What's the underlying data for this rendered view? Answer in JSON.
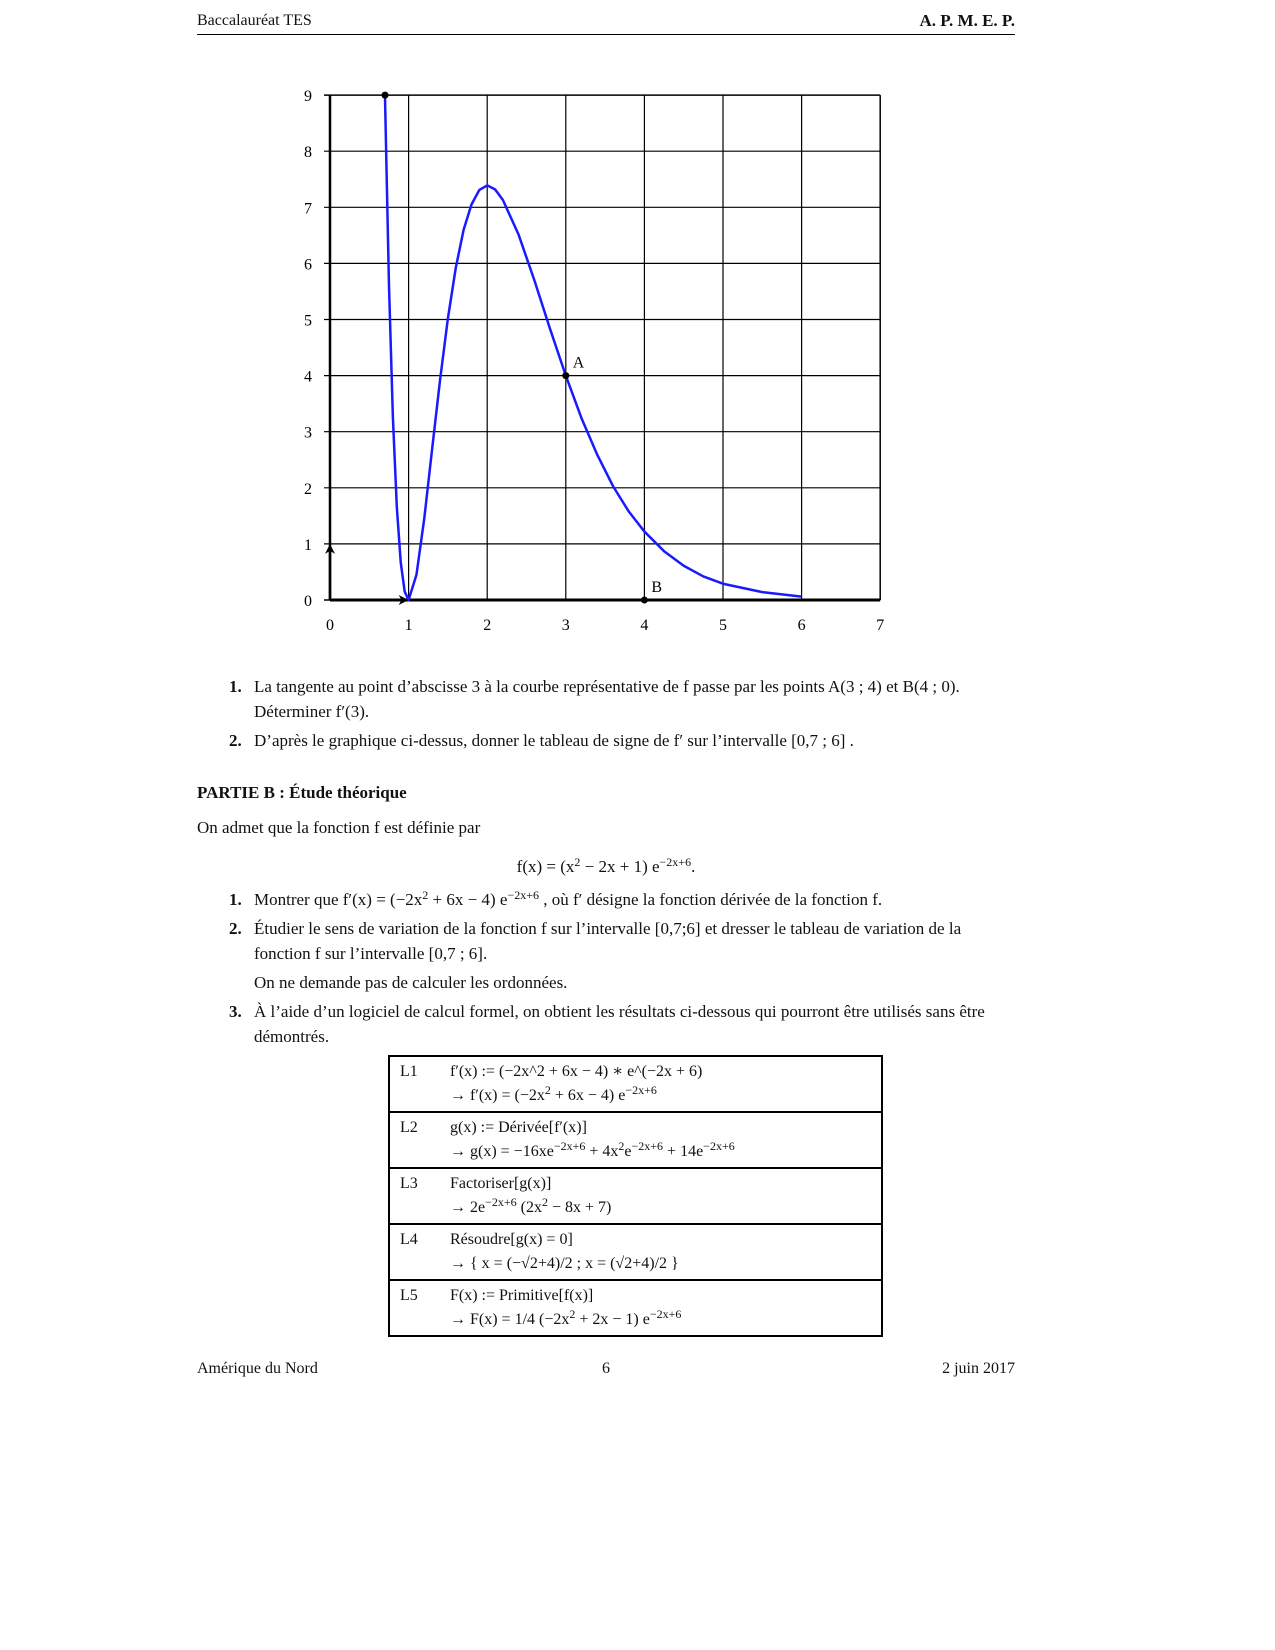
{
  "header": {
    "left": "Baccalauréat TES",
    "right": "A. P. M. E. P."
  },
  "chart_data": {
    "type": "line",
    "xlim": [
      0,
      7
    ],
    "ylim": [
      0,
      9
    ],
    "x_ticks": [
      "0",
      "1",
      "2",
      "3",
      "4",
      "5",
      "6",
      "7"
    ],
    "y_ticks": [
      "0",
      "1",
      "2",
      "3",
      "4",
      "5",
      "6",
      "7",
      "8",
      "9"
    ],
    "grid": true,
    "curve_color": "#1a1aff",
    "series": [
      {
        "x": [
          0.7,
          0.75,
          0.8,
          0.85,
          0.9,
          0.95,
          1,
          1.1,
          1.2,
          1.3,
          1.4,
          1.5,
          1.6,
          1.7,
          1.8,
          1.9,
          2,
          2.1,
          2.2,
          2.4,
          2.6,
          2.8,
          3,
          3.2,
          3.4,
          3.6,
          3.8,
          4,
          4.25,
          4.5,
          4.75,
          5,
          5.5,
          6
        ],
        "y": [
          8.95,
          5.63,
          3.26,
          1.66,
          0.67,
          0.15,
          0,
          0.45,
          1.46,
          2.7,
          3.92,
          5.02,
          5.92,
          6.6,
          7.05,
          7.31,
          7.39,
          7.32,
          7.13,
          6.51,
          5.7,
          4.83,
          4,
          3.24,
          2.59,
          2.03,
          1.58,
          1.22,
          0.87,
          0.61,
          0.42,
          0.29,
          0.14,
          0.06
        ]
      }
    ],
    "points": [
      {
        "label": "A",
        "x": 3,
        "y": 4
      },
      {
        "label": "B",
        "x": 4,
        "y": 0
      },
      {
        "label": "",
        "x": 0.7,
        "y": 9
      }
    ]
  },
  "partA": {
    "items": [
      {
        "num": "1.",
        "text": "La tangente au point d’abscisse 3 à la courbe représentative de f passe par les points A(3 ; 4) et B(4 ; 0). Déterminer f′(3)."
      },
      {
        "num": "2.",
        "text": "D’après le graphique ci-dessus, donner le tableau de signe de f′ sur l’intervalle [0,7 ; 6] ."
      }
    ]
  },
  "partB": {
    "title": "PARTIE B : Étude théorique",
    "intro": "On admet que la fonction f est définie par",
    "formula": "f(x) = (x^{2} − 2x + 1) e^{−2x+6}.",
    "items": [
      {
        "num": "1.",
        "text": "Montrer que f′(x) = (−2x^{2} + 6x − 4) e^{−2x+6} , où f′ désigne la fonction dérivée de la fonction f."
      },
      {
        "num": "2.",
        "text": "Étudier le sens de variation de la fonction f sur l’intervalle [0,7;6] et dresser le tableau de variation de la fonction f sur l’intervalle [0,7 ; 6].",
        "extra": "On ne demande pas de calculer les ordonnées."
      },
      {
        "num": "3.",
        "text": "À l’aide d’un logiciel de calcul formel, on obtient les résultats ci-dessous qui pourront être utilisés sans être démontrés."
      }
    ]
  },
  "cas": [
    {
      "label": "L1",
      "input": "f′(x) := (−2x^2 + 6x − 4) ∗ e^(−2x + 6)",
      "output": "→ f′(x) = (−2x^{2} + 6x − 4) e^{−2x+6}"
    },
    {
      "label": "L2",
      "input": "g(x) := Dérivée[f′(x)]",
      "output": "→ g(x) = −16xe^{−2x+6} + 4x^{2}e^{−2x+6} + 14e^{−2x+6}"
    },
    {
      "label": "L3",
      "input": "Factoriser[g(x)]",
      "output": "→ 2e^{−2x+6} (2x^{2} − 8x + 7)"
    },
    {
      "label": "L4",
      "input": "Résoudre[g(x) = 0]",
      "output": "→ { x = (−√2+4)/2 ; x = (√2+4)/2 }"
    },
    {
      "label": "L5",
      "input": "F(x) := Primitive[f(x)]",
      "output": "→ F(x) = 1/4 (−2x^{2} + 2x − 1) e^{−2x+6}"
    }
  ],
  "footer": {
    "left": "Amérique du Nord",
    "center": "6",
    "right": "2 juin 2017"
  }
}
